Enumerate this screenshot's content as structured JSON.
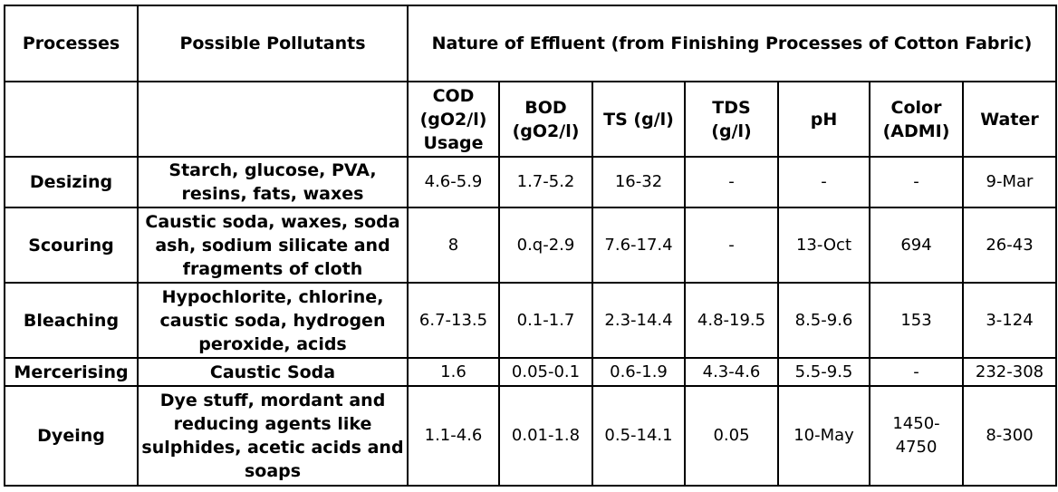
{
  "table": {
    "header_top": {
      "processes": "Processes",
      "possible_pollutants": "Possible Pollutants",
      "nature_of_effluent": "Nature of Effluent (from Finishing Processes of Cotton Fabric)"
    },
    "header_sub": {
      "cod": [
        "COD",
        "(gO2/l)",
        "Usage"
      ],
      "bod": [
        "BOD",
        "(gO2/l)"
      ],
      "ts": [
        "TS (g/l)"
      ],
      "tds": [
        "TDS",
        "(g/l)"
      ],
      "ph": [
        "pH"
      ],
      "color": [
        "Color",
        "(ADMI)"
      ],
      "water": [
        "Water"
      ]
    },
    "rows": [
      {
        "process": "Desizing",
        "pollutants": [
          "Starch, glucose, PVA,",
          "resins, fats, waxes"
        ],
        "cod": "4.6-5.9",
        "bod": "1.7-5.2",
        "ts": "16-32",
        "tds": "-",
        "ph": "-",
        "color": [
          "-"
        ],
        "water": "9-Mar"
      },
      {
        "process": "Scouring",
        "pollutants": [
          "Caustic soda, waxes, soda",
          "ash, sodium silicate and",
          "fragments of cloth"
        ],
        "cod": "8",
        "bod": "0.q-2.9",
        "ts": "7.6-17.4",
        "tds": "-",
        "ph": "13-Oct",
        "color": [
          "694"
        ],
        "water": "26-43"
      },
      {
        "process": "Bleaching",
        "pollutants": [
          "Hypochlorite, chlorine,",
          "caustic soda, hydrogen",
          "peroxide, acids"
        ],
        "cod": "6.7-13.5",
        "bod": "0.1-1.7",
        "ts": "2.3-14.4",
        "tds": "4.8-19.5",
        "ph": "8.5-9.6",
        "color": [
          "153"
        ],
        "water": "3-124"
      },
      {
        "process": "Mercerising",
        "pollutants": [
          "Caustic Soda"
        ],
        "cod": "1.6",
        "bod": "0.05-0.1",
        "ts": "0.6-1.9",
        "tds": "4.3-4.6",
        "ph": "5.5-9.5",
        "color": [
          "-"
        ],
        "water": "232-308"
      },
      {
        "process": "Dyeing",
        "pollutants": [
          "Dye stuff, mordant and",
          "reducing agents like",
          "sulphides, acetic acids and",
          "soaps"
        ],
        "cod": "1.1-4.6",
        "bod": "0.01-1.8",
        "ts": "0.5-14.1",
        "tds": "0.05",
        "ph": "10-May",
        "color": [
          "1450-",
          "4750"
        ],
        "water": "8-300"
      }
    ]
  }
}
